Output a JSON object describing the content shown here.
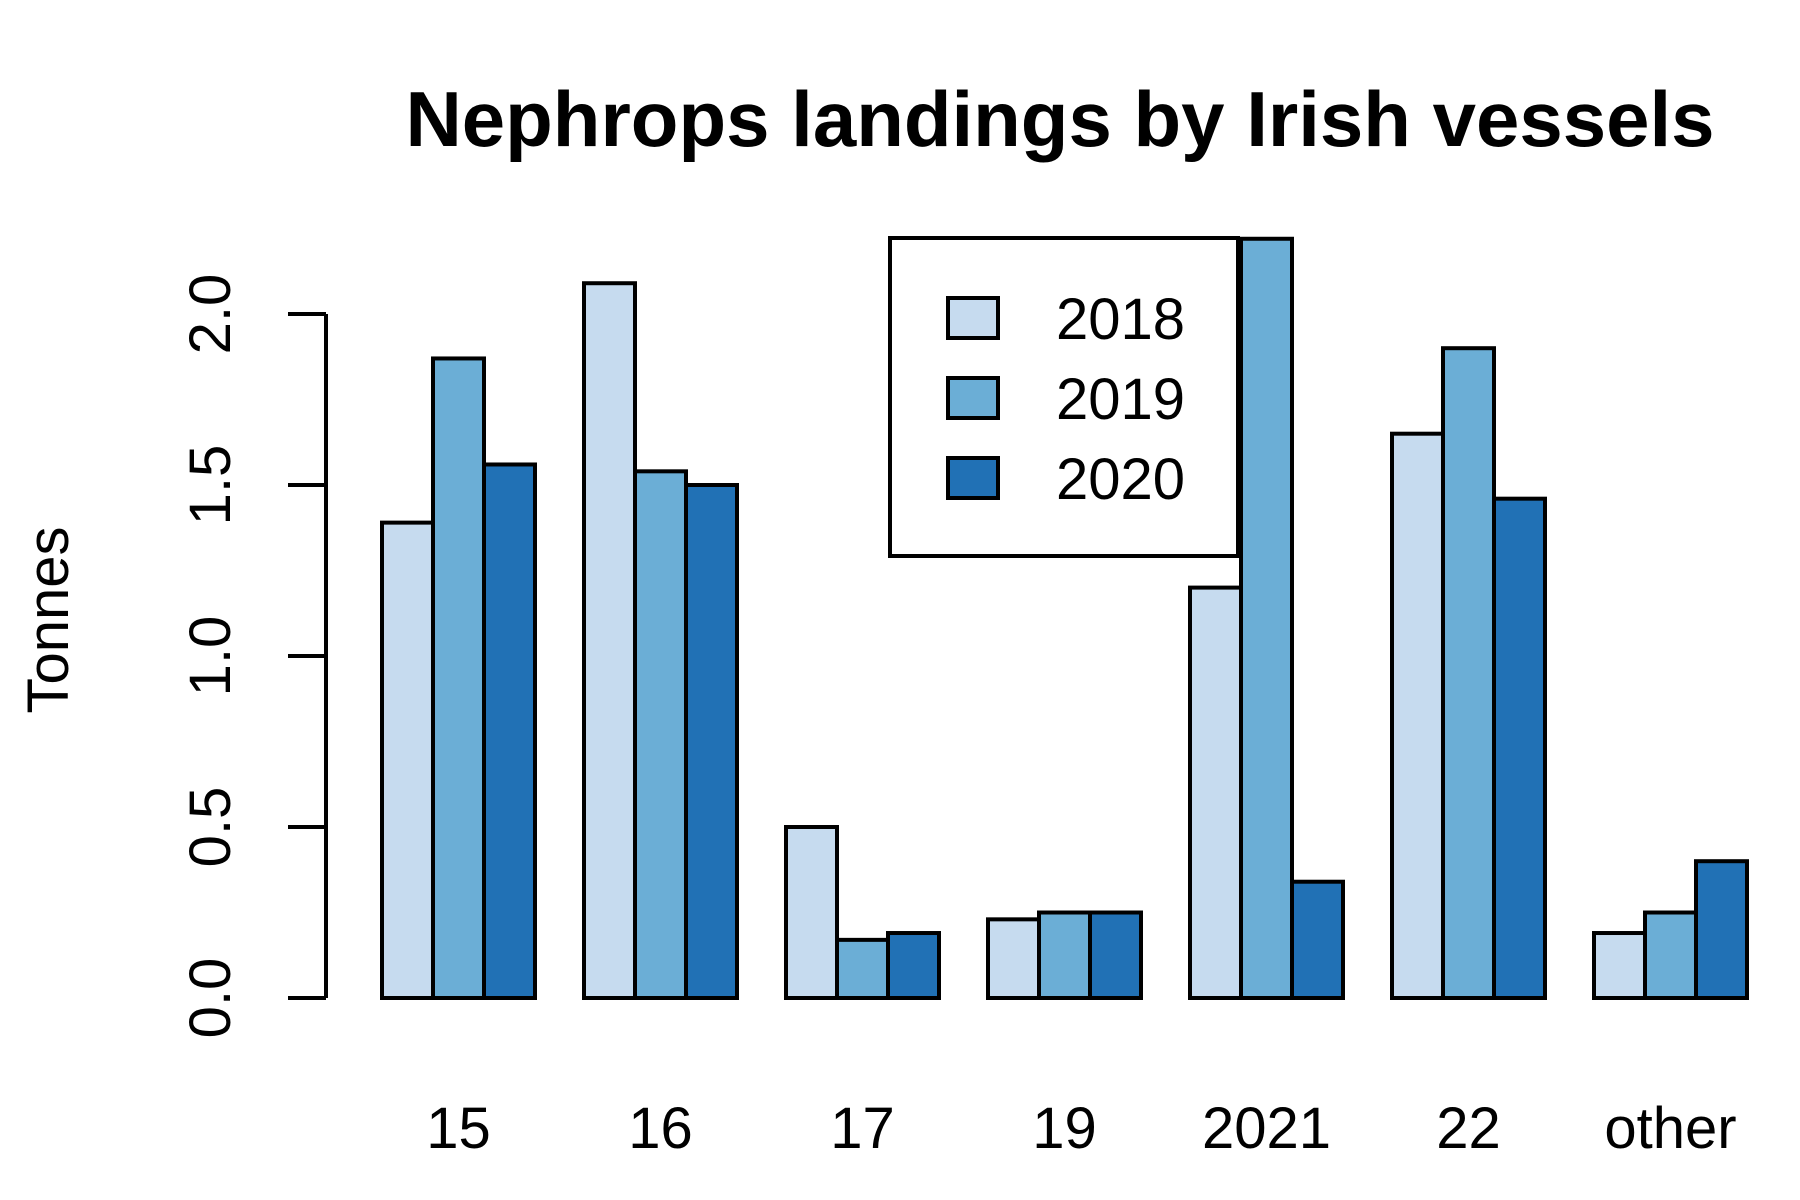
{
  "chart_data": {
    "type": "bar",
    "title": "Nephrops landings by Irish vessels",
    "xlabel": "",
    "ylabel": "Tonnes",
    "categories": [
      "15",
      "16",
      "17",
      "19",
      "2021",
      "22",
      "other"
    ],
    "series": [
      {
        "name": "2018",
        "color": "#c6dbef",
        "values": [
          1.39,
          2.09,
          0.5,
          0.23,
          1.2,
          1.65,
          0.19
        ]
      },
      {
        "name": "2019",
        "color": "#6baed6",
        "values": [
          1.87,
          1.54,
          0.17,
          0.25,
          2.22,
          1.9,
          0.25
        ]
      },
      {
        "name": "2020",
        "color": "#2171b5",
        "values": [
          1.56,
          1.5,
          0.19,
          0.25,
          0.34,
          1.46,
          0.4
        ]
      }
    ],
    "ylim": [
      0,
      2.22
    ],
    "yticks": [
      "0.0",
      "0.5",
      "1.0",
      "1.5",
      "2.0"
    ],
    "legend_position": "top-center",
    "grid": false
  }
}
